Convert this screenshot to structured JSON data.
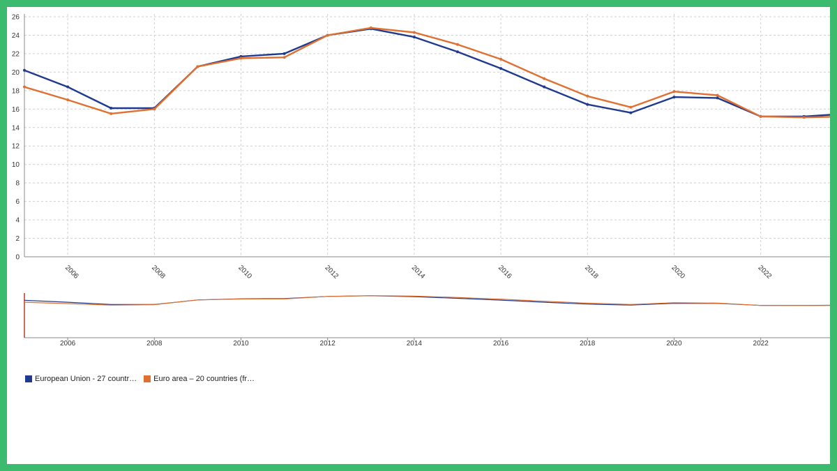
{
  "chart_data": [
    {
      "type": "line",
      "x": [
        2005,
        2006,
        2007,
        2008,
        2009,
        2010,
        2011,
        2012,
        2013,
        2014,
        2015,
        2016,
        2017,
        2018,
        2019,
        2020,
        2021,
        2022,
        2023,
        2024
      ],
      "x_ticks": [
        "2006",
        "2008",
        "2010",
        "2012",
        "2014",
        "2016",
        "2018",
        "2020",
        "2022"
      ],
      "y_ticks": [
        "0",
        "2",
        "4",
        "6",
        "8",
        "10",
        "12",
        "14",
        "16",
        "18",
        "20",
        "22",
        "24",
        "26"
      ],
      "xlim": [
        2005,
        2023.6
      ],
      "ylim": [
        0,
        26
      ],
      "grid": true,
      "series": [
        {
          "name": "European Union - 27 countr…",
          "color": "#1f3a8f",
          "values": [
            20.2,
            18.4,
            16.1,
            16.1,
            20.6,
            21.7,
            22.0,
            24.0,
            24.7,
            23.8,
            22.2,
            20.4,
            18.4,
            16.5,
            15.6,
            17.3,
            17.2,
            15.2,
            15.2,
            15.5
          ]
        },
        {
          "name": "Euro area – 20 countries (fr…",
          "color": "#e07030",
          "values": [
            18.4,
            17.0,
            15.5,
            16.0,
            20.6,
            21.5,
            21.6,
            24.0,
            24.8,
            24.3,
            23.0,
            21.4,
            19.3,
            17.4,
            16.2,
            17.9,
            17.5,
            15.2,
            15.1,
            15.2
          ]
        }
      ]
    },
    {
      "type": "line",
      "role": "navigator",
      "x_ticks": [
        "2006",
        "2008",
        "2010",
        "2012",
        "2014",
        "2016",
        "2018",
        "2020",
        "2022"
      ],
      "xlim": [
        2005,
        2023.6
      ]
    }
  ],
  "legend": {
    "placement": "bottom-left",
    "items": [
      {
        "label": "European Union - 27 countr…",
        "color": "#1f3a8f"
      },
      {
        "label": "Euro area – 20 countries (fr…",
        "color": "#e07030"
      }
    ]
  }
}
